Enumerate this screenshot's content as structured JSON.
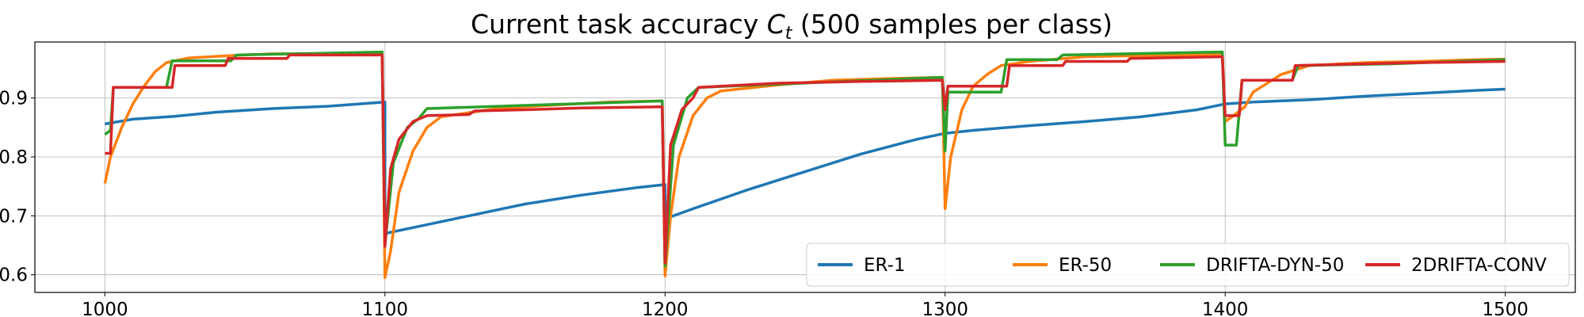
{
  "chart_data": {
    "type": "line",
    "title": "Current task accuracy C_t (500 samples per class)",
    "title_parts": {
      "prefix": "Current task accuracy ",
      "symbol": "C",
      "subscript": "t",
      "suffix": " (500 samples per class)"
    },
    "xlabel": "",
    "ylabel": "",
    "xlim": [
      975,
      1525
    ],
    "ylim": [
      0.57,
      0.995
    ],
    "xticks": [
      1000,
      1100,
      1200,
      1300,
      1400,
      1500
    ],
    "xtick_labels": [
      "1000",
      "1100",
      "1200",
      "1300",
      "1400",
      "1500"
    ],
    "yticks": [
      0.6,
      0.7,
      0.8,
      0.9
    ],
    "ytick_labels": [
      "0.6",
      "0.7",
      "0.8",
      "0.9"
    ],
    "grid": true,
    "legend": {
      "placement": "lower-right",
      "columns": 4
    },
    "series": [
      {
        "name": "ER-1",
        "color": "#1f77b4",
        "points": [
          [
            1000,
            0.856
          ],
          [
            1010,
            0.864
          ],
          [
            1025,
            0.869
          ],
          [
            1040,
            0.876
          ],
          [
            1060,
            0.882
          ],
          [
            1080,
            0.886
          ],
          [
            1100,
            0.893
          ],
          [
            1100,
            0.67
          ],
          [
            1110,
            0.68
          ],
          [
            1130,
            0.7
          ],
          [
            1150,
            0.72
          ],
          [
            1170,
            0.735
          ],
          [
            1190,
            0.748
          ],
          [
            1200,
            0.753
          ],
          [
            1200,
            0.695
          ],
          [
            1210,
            0.712
          ],
          [
            1230,
            0.745
          ],
          [
            1250,
            0.775
          ],
          [
            1270,
            0.805
          ],
          [
            1290,
            0.83
          ],
          [
            1300,
            0.84
          ],
          [
            1310,
            0.845
          ],
          [
            1330,
            0.853
          ],
          [
            1350,
            0.86
          ],
          [
            1370,
            0.868
          ],
          [
            1390,
            0.88
          ],
          [
            1400,
            0.89
          ],
          [
            1410,
            0.893
          ],
          [
            1430,
            0.897
          ],
          [
            1450,
            0.903
          ],
          [
            1470,
            0.908
          ],
          [
            1490,
            0.913
          ],
          [
            1500,
            0.915
          ]
        ]
      },
      {
        "name": "ER-50",
        "color": "#ff7f0e",
        "points": [
          [
            1000,
            0.755
          ],
          [
            1002,
            0.8
          ],
          [
            1006,
            0.85
          ],
          [
            1010,
            0.89
          ],
          [
            1014,
            0.92
          ],
          [
            1018,
            0.945
          ],
          [
            1022,
            0.96
          ],
          [
            1030,
            0.968
          ],
          [
            1045,
            0.972
          ],
          [
            1060,
            0.975
          ],
          [
            1080,
            0.975
          ],
          [
            1099,
            0.975
          ],
          [
            1100,
            0.595
          ],
          [
            1102,
            0.64
          ],
          [
            1105,
            0.74
          ],
          [
            1110,
            0.81
          ],
          [
            1115,
            0.85
          ],
          [
            1120,
            0.868
          ],
          [
            1140,
            0.882
          ],
          [
            1160,
            0.888
          ],
          [
            1180,
            0.893
          ],
          [
            1199,
            0.895
          ],
          [
            1200,
            0.598
          ],
          [
            1202,
            0.7
          ],
          [
            1205,
            0.8
          ],
          [
            1210,
            0.87
          ],
          [
            1215,
            0.9
          ],
          [
            1220,
            0.912
          ],
          [
            1240,
            0.922
          ],
          [
            1260,
            0.93
          ],
          [
            1280,
            0.933
          ],
          [
            1299,
            0.935
          ],
          [
            1300,
            0.712
          ],
          [
            1302,
            0.8
          ],
          [
            1306,
            0.88
          ],
          [
            1310,
            0.92
          ],
          [
            1315,
            0.94
          ],
          [
            1320,
            0.955
          ],
          [
            1330,
            0.962
          ],
          [
            1350,
            0.97
          ],
          [
            1370,
            0.972
          ],
          [
            1390,
            0.973
          ],
          [
            1399,
            0.975
          ],
          [
            1400,
            0.86
          ],
          [
            1403,
            0.87
          ],
          [
            1407,
            0.885
          ],
          [
            1410,
            0.91
          ],
          [
            1420,
            0.94
          ],
          [
            1430,
            0.955
          ],
          [
            1450,
            0.96
          ],
          [
            1470,
            0.962
          ],
          [
            1490,
            0.965
          ],
          [
            1500,
            0.966
          ]
        ]
      },
      {
        "name": "DRIFTA-DYN-50",
        "color": "#2ca02c",
        "points": [
          [
            1000,
            0.838
          ],
          [
            1002,
            0.845
          ],
          [
            1003,
            0.918
          ],
          [
            1022,
            0.918
          ],
          [
            1024,
            0.963
          ],
          [
            1045,
            0.963
          ],
          [
            1047,
            0.973
          ],
          [
            1099,
            0.978
          ],
          [
            1100,
            0.65
          ],
          [
            1103,
            0.79
          ],
          [
            1108,
            0.85
          ],
          [
            1112,
            0.865
          ],
          [
            1115,
            0.882
          ],
          [
            1199,
            0.895
          ],
          [
            1200,
            0.615
          ],
          [
            1203,
            0.82
          ],
          [
            1208,
            0.9
          ],
          [
            1212,
            0.918
          ],
          [
            1299,
            0.935
          ],
          [
            1300,
            0.81
          ],
          [
            1301,
            0.91
          ],
          [
            1320,
            0.91
          ],
          [
            1322,
            0.965
          ],
          [
            1340,
            0.965
          ],
          [
            1342,
            0.973
          ],
          [
            1399,
            0.978
          ],
          [
            1400,
            0.82
          ],
          [
            1404,
            0.82
          ],
          [
            1406,
            0.93
          ],
          [
            1424,
            0.93
          ],
          [
            1426,
            0.955
          ],
          [
            1460,
            0.958
          ],
          [
            1500,
            0.965
          ]
        ]
      },
      {
        "name": "2DRIFTA-CONV",
        "color": "#d62728",
        "points": [
          [
            1000,
            0.806
          ],
          [
            1002,
            0.806
          ],
          [
            1003,
            0.918
          ],
          [
            1024,
            0.918
          ],
          [
            1025,
            0.955
          ],
          [
            1043,
            0.955
          ],
          [
            1044,
            0.967
          ],
          [
            1065,
            0.967
          ],
          [
            1066,
            0.973
          ],
          [
            1099,
            0.973
          ],
          [
            1100,
            0.648
          ],
          [
            1102,
            0.78
          ],
          [
            1105,
            0.83
          ],
          [
            1110,
            0.86
          ],
          [
            1115,
            0.87
          ],
          [
            1130,
            0.872
          ],
          [
            1132,
            0.878
          ],
          [
            1150,
            0.88
          ],
          [
            1170,
            0.883
          ],
          [
            1199,
            0.885
          ],
          [
            1200,
            0.62
          ],
          [
            1202,
            0.82
          ],
          [
            1206,
            0.88
          ],
          [
            1210,
            0.9
          ],
          [
            1212,
            0.918
          ],
          [
            1240,
            0.925
          ],
          [
            1270,
            0.928
          ],
          [
            1299,
            0.93
          ],
          [
            1300,
            0.88
          ],
          [
            1301,
            0.92
          ],
          [
            1322,
            0.92
          ],
          [
            1323,
            0.955
          ],
          [
            1342,
            0.955
          ],
          [
            1343,
            0.962
          ],
          [
            1365,
            0.962
          ],
          [
            1366,
            0.967
          ],
          [
            1399,
            0.97
          ],
          [
            1400,
            0.87
          ],
          [
            1405,
            0.87
          ],
          [
            1406,
            0.93
          ],
          [
            1424,
            0.93
          ],
          [
            1425,
            0.955
          ],
          [
            1450,
            0.958
          ],
          [
            1470,
            0.96
          ],
          [
            1500,
            0.962
          ]
        ]
      }
    ]
  }
}
